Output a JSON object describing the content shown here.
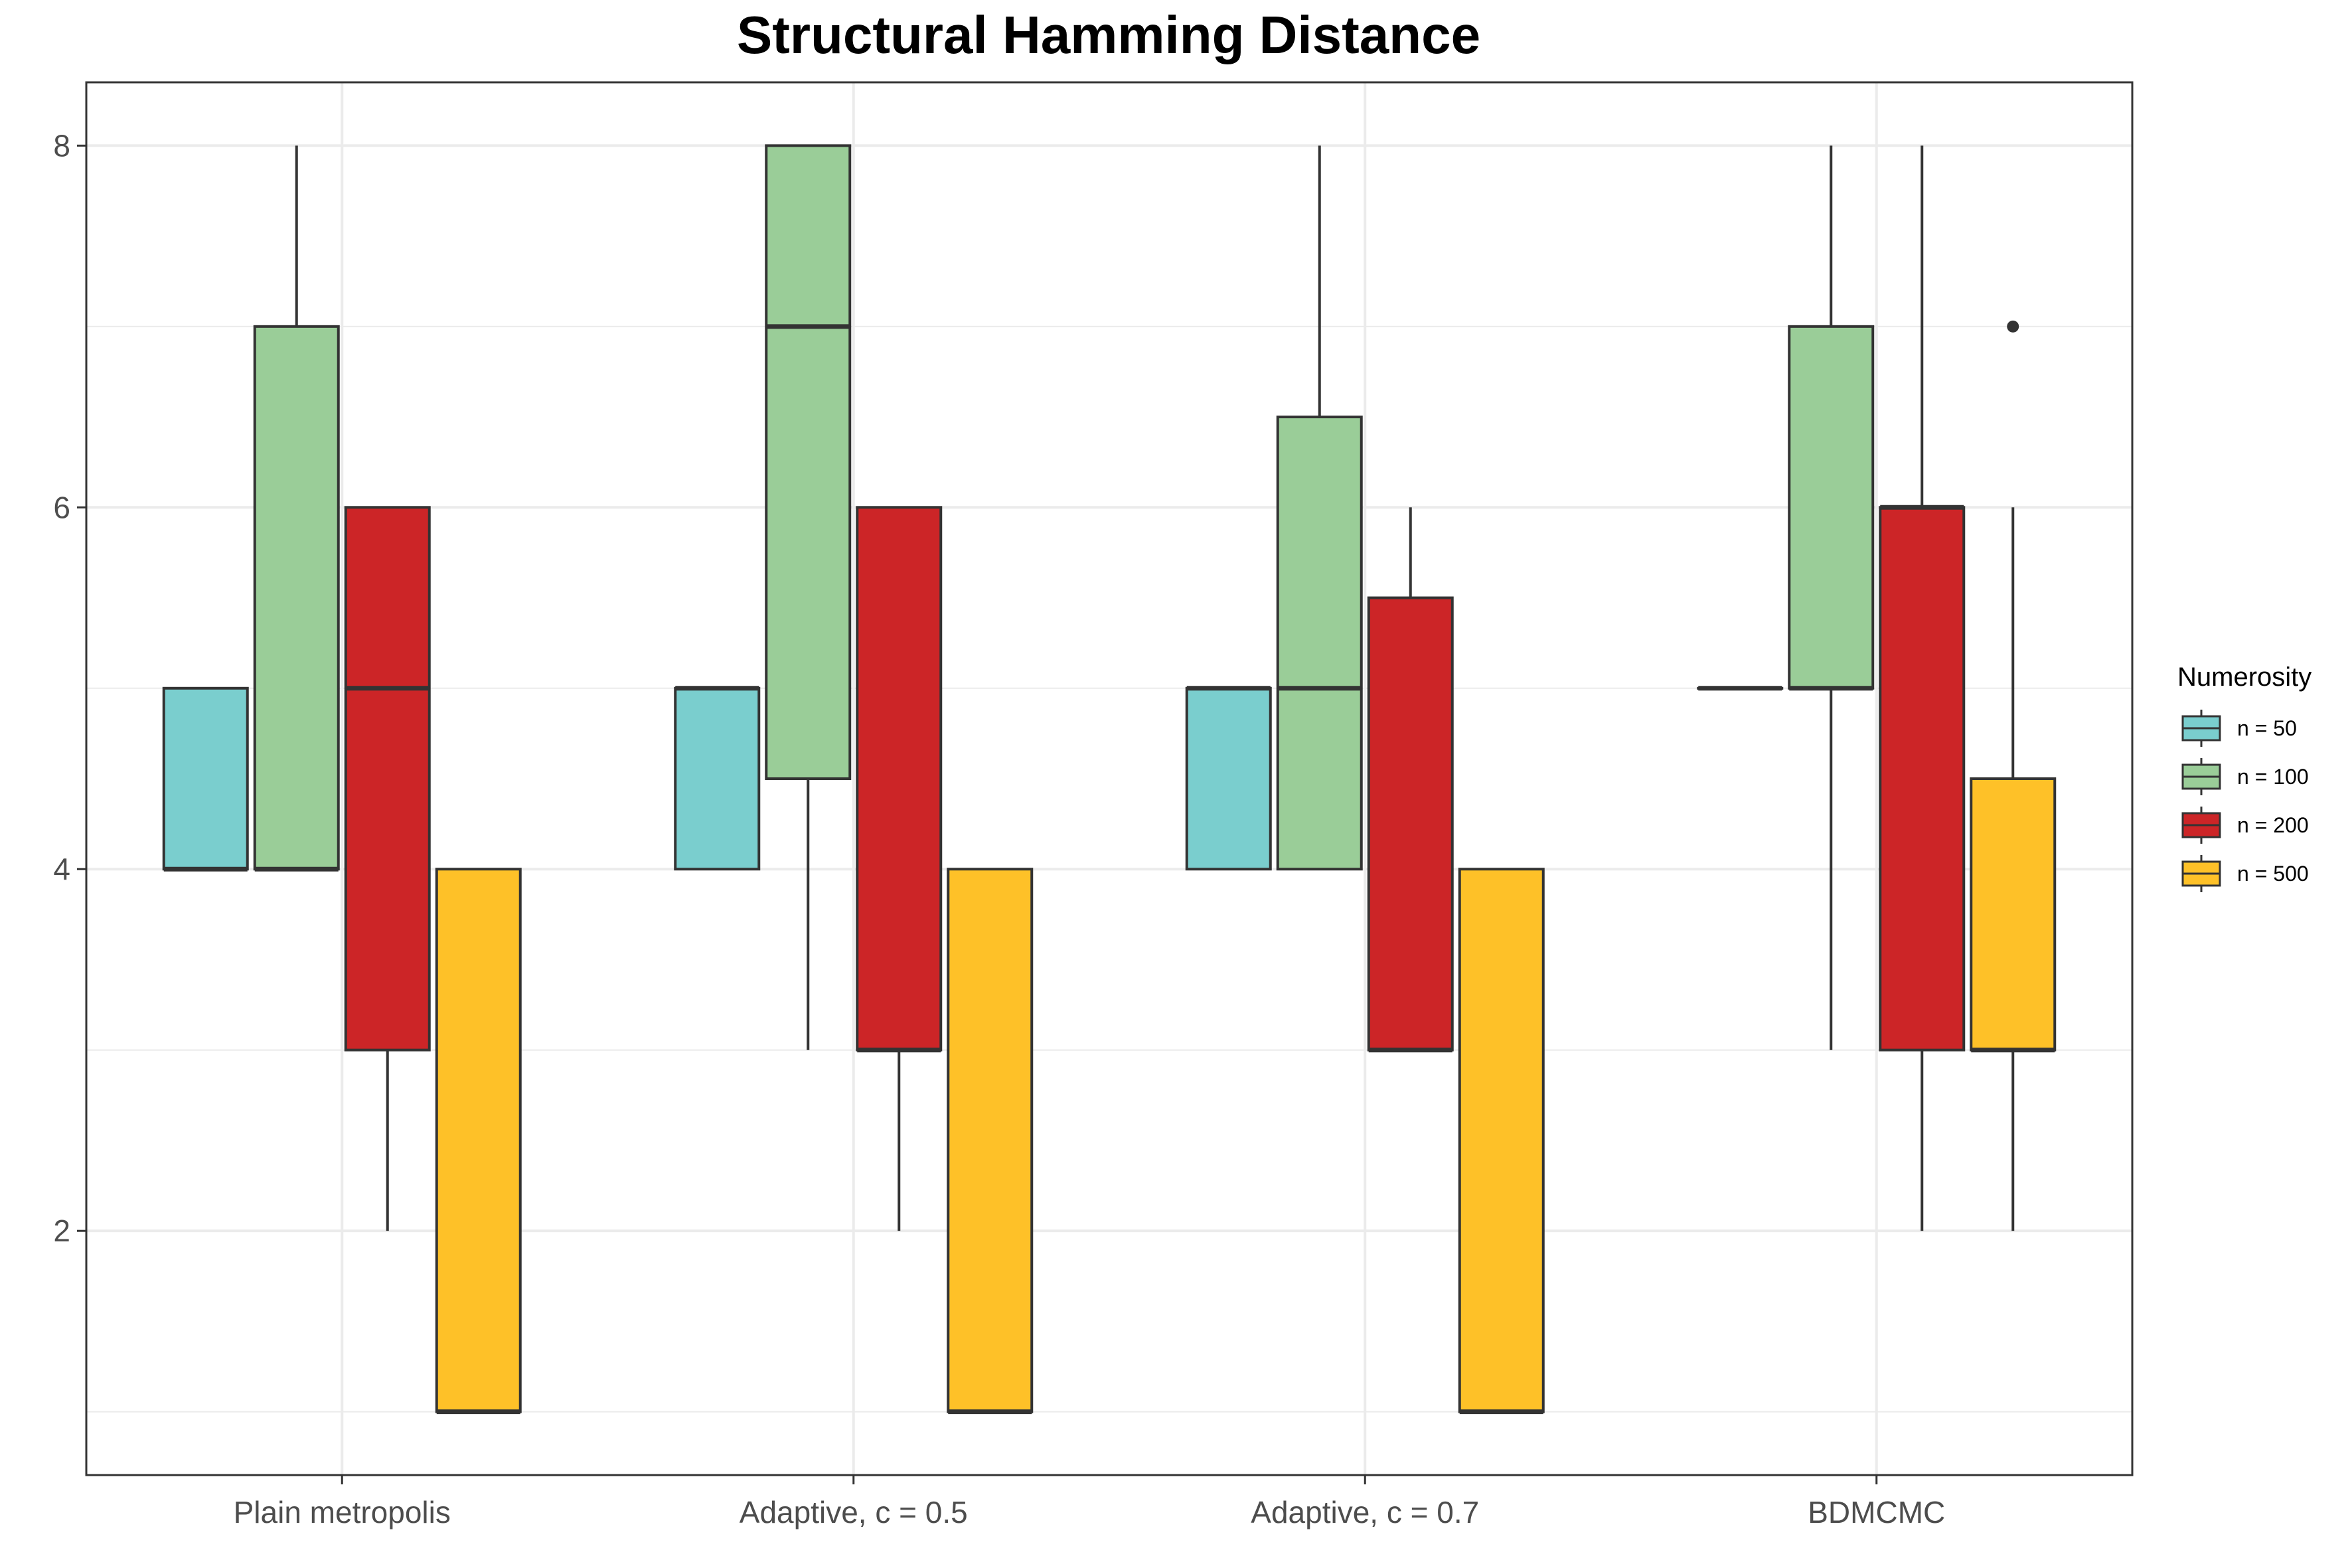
{
  "chart_data": {
    "type": "boxplot",
    "title": "Structural Hamming Distance",
    "xlabel": "",
    "ylabel": "",
    "categories": [
      "Plain metropolis",
      "Adaptive, c = 0.5",
      "Adaptive, c = 0.7",
      "BDMCMC"
    ],
    "ylim": [
      0.65,
      8.35
    ],
    "yticks": [
      2,
      4,
      6,
      8
    ],
    "grid": true,
    "legend": {
      "title": "Numerosity",
      "position": "right"
    },
    "series": [
      {
        "name": "n = 50",
        "color": "#7ACECE",
        "boxes": [
          {
            "min": 4,
            "q1": 4,
            "median": 4,
            "q3": 5,
            "max": 5,
            "outliers": []
          },
          {
            "min": 4,
            "q1": 4,
            "median": 5,
            "q3": 5,
            "max": 5,
            "outliers": []
          },
          {
            "min": 4,
            "q1": 4,
            "median": 5,
            "q3": 5,
            "max": 5,
            "outliers": []
          },
          {
            "min": 5,
            "q1": 5,
            "median": 5,
            "q3": 5,
            "max": 5,
            "outliers": []
          }
        ]
      },
      {
        "name": "n = 100",
        "color": "#9ACD98",
        "boxes": [
          {
            "min": 4,
            "q1": 4,
            "median": 4,
            "q3": 7,
            "max": 8,
            "outliers": []
          },
          {
            "min": 3,
            "q1": 4.5,
            "median": 7,
            "q3": 8,
            "max": 8,
            "outliers": []
          },
          {
            "min": 4,
            "q1": 4,
            "median": 5,
            "q3": 6.5,
            "max": 8,
            "outliers": []
          },
          {
            "min": 3,
            "q1": 5,
            "median": 5,
            "q3": 7,
            "max": 8,
            "outliers": []
          }
        ]
      },
      {
        "name": "n = 200",
        "color": "#CC2527",
        "boxes": [
          {
            "min": 2,
            "q1": 3,
            "median": 5,
            "q3": 6,
            "max": 6,
            "outliers": []
          },
          {
            "min": 2,
            "q1": 3,
            "median": 3,
            "q3": 6,
            "max": 6,
            "outliers": []
          },
          {
            "min": 3,
            "q1": 3,
            "median": 3,
            "q3": 5.5,
            "max": 6,
            "outliers": []
          },
          {
            "min": 2,
            "q1": 3,
            "median": 6,
            "q3": 6,
            "max": 8,
            "outliers": []
          }
        ]
      },
      {
        "name": "n = 500",
        "color": "#FEC128",
        "boxes": [
          {
            "min": 1,
            "q1": 1,
            "median": 1,
            "q3": 4,
            "max": 4,
            "outliers": []
          },
          {
            "min": 1,
            "q1": 1,
            "median": 1,
            "q3": 4,
            "max": 4,
            "outliers": []
          },
          {
            "min": 1,
            "q1": 1,
            "median": 1,
            "q3": 4,
            "max": 4,
            "outliers": []
          },
          {
            "min": 2,
            "q1": 3,
            "median": 3,
            "q3": 4.5,
            "max": 6,
            "outliers": [
              7
            ]
          }
        ]
      }
    ]
  }
}
